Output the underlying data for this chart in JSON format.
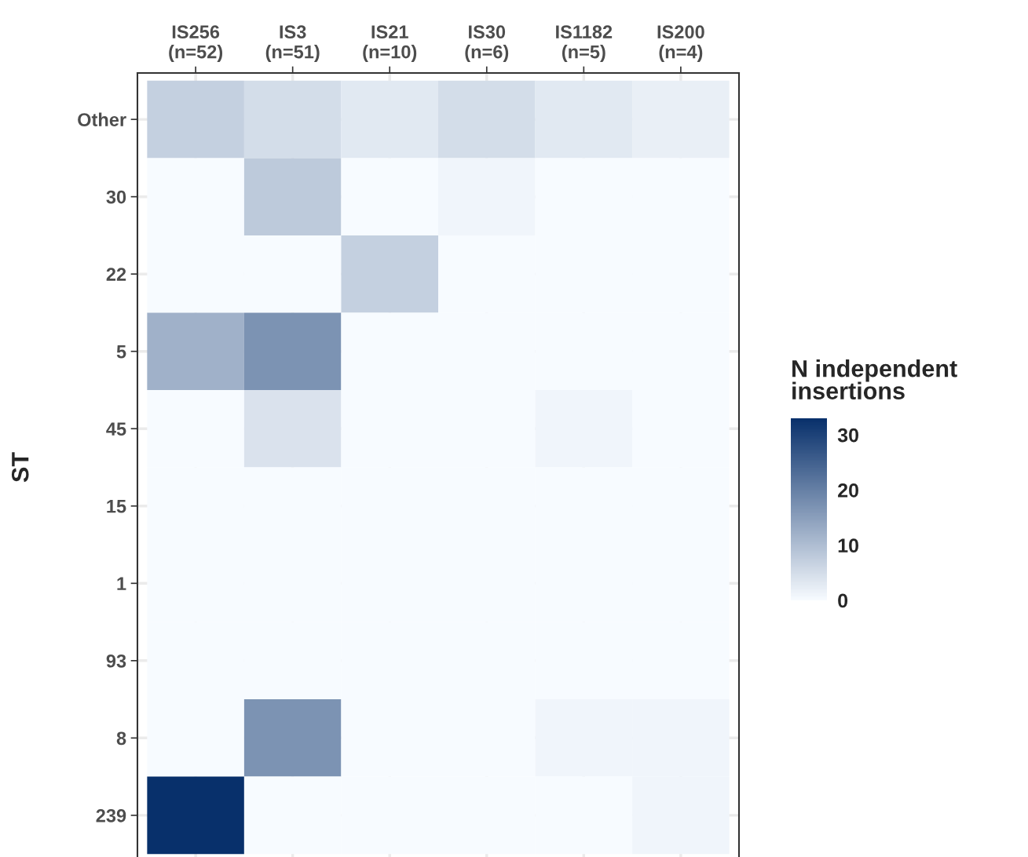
{
  "chart_data": {
    "type": "heatmap",
    "xlabel": null,
    "ylabel": "ST",
    "legend_title": "N independent\ninsertions",
    "categories": [
      "IS256\n(n=52)",
      "IS3\n(n=51)",
      "IS21\n(n=10)",
      "IS30\n(n=6)",
      "IS1182\n(n=5)",
      "IS200\n(n=4)"
    ],
    "y_categories": [
      "Other",
      "30",
      "22",
      "5",
      "45",
      "15",
      "1",
      "93",
      "8",
      "239"
    ],
    "cells": [
      [
        7,
        5,
        3,
        5,
        3,
        2
      ],
      [
        0,
        8,
        0,
        1,
        0,
        0
      ],
      [
        0,
        0,
        7,
        0,
        0,
        0
      ],
      [
        12,
        17,
        0,
        0,
        0,
        0
      ],
      [
        0,
        4,
        0,
        0,
        1,
        0
      ],
      [
        0,
        0,
        0,
        0,
        0,
        0
      ],
      [
        0,
        0,
        0,
        0,
        0,
        0
      ],
      [
        0,
        0,
        0,
        0,
        0,
        0
      ],
      [
        0,
        17,
        0,
        0,
        1,
        1
      ],
      [
        33,
        0,
        0,
        0,
        0,
        1
      ]
    ],
    "clim": [
      0,
      33
    ],
    "cticks": [
      0,
      10,
      20,
      30
    ],
    "colors": [
      "#f7fbff",
      "#08306b"
    ],
    "grid": true
  }
}
